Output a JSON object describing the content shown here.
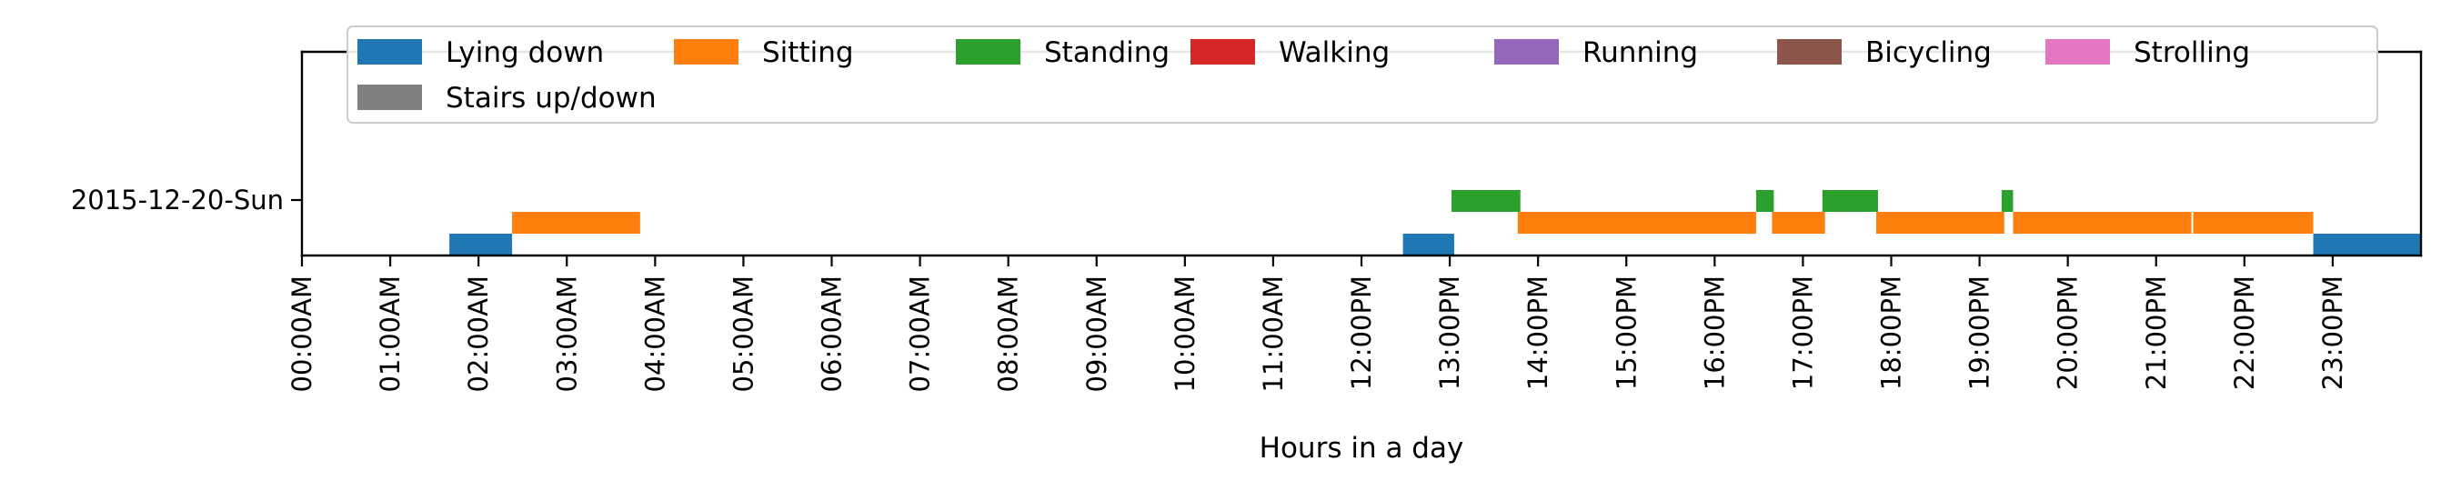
{
  "chart_data": {
    "type": "timeline",
    "xlabel": "Hours in a day",
    "ylabel": "",
    "xlim": [
      0,
      24
    ],
    "x_ticks": [
      "00:00AM",
      "01:00AM",
      "02:00AM",
      "03:00AM",
      "04:00AM",
      "05:00AM",
      "06:00AM",
      "07:00AM",
      "08:00AM",
      "09:00AM",
      "10:00AM",
      "11:00AM",
      "12:00PM",
      "13:00PM",
      "14:00PM",
      "15:00PM",
      "16:00PM",
      "17:00PM",
      "18:00PM",
      "19:00PM",
      "20:00PM",
      "21:00PM",
      "22:00PM",
      "23:00PM"
    ],
    "rows": [
      "2015-12-20-Sun"
    ],
    "legend_position": "top",
    "categories": [
      {
        "name": "Lying down",
        "color": "#1f77b4",
        "level": 0
      },
      {
        "name": "Sitting",
        "color": "#ff7f0e",
        "level": 1
      },
      {
        "name": "Standing",
        "color": "#2ca02c",
        "level": 2
      },
      {
        "name": "Walking",
        "color": "#d62728",
        "level": 3
      },
      {
        "name": "Running",
        "color": "#9467bd",
        "level": 4
      },
      {
        "name": "Bicycling",
        "color": "#8c564b",
        "level": 5
      },
      {
        "name": "Strolling",
        "color": "#e377c2",
        "level": 6
      },
      {
        "name": "Stairs up/down",
        "color": "#7f7f7f",
        "level": 7
      }
    ],
    "segments": [
      {
        "label": "Lying down",
        "start": 1.67,
        "end": 2.38
      },
      {
        "label": "Sitting",
        "start": 2.38,
        "end": 3.83
      },
      {
        "label": "Lying down",
        "start": 12.47,
        "end": 13.05
      },
      {
        "label": "Standing",
        "start": 13.02,
        "end": 13.8
      },
      {
        "label": "Sitting",
        "start": 13.77,
        "end": 16.47
      },
      {
        "label": "Standing",
        "start": 16.47,
        "end": 16.67
      },
      {
        "label": "Sitting",
        "start": 16.65,
        "end": 17.25
      },
      {
        "label": "Standing",
        "start": 17.22,
        "end": 17.85
      },
      {
        "label": "Sitting",
        "start": 17.83,
        "end": 19.28
      },
      {
        "label": "Standing",
        "start": 19.25,
        "end": 19.38
      },
      {
        "label": "Sitting",
        "start": 19.38,
        "end": 19.72
      },
      {
        "label": "Sitting",
        "start": 19.72,
        "end": 21.4
      },
      {
        "label": "Sitting",
        "start": 21.42,
        "end": 22.78
      },
      {
        "label": "Lying down",
        "start": 22.78,
        "end": 24.0
      }
    ]
  }
}
